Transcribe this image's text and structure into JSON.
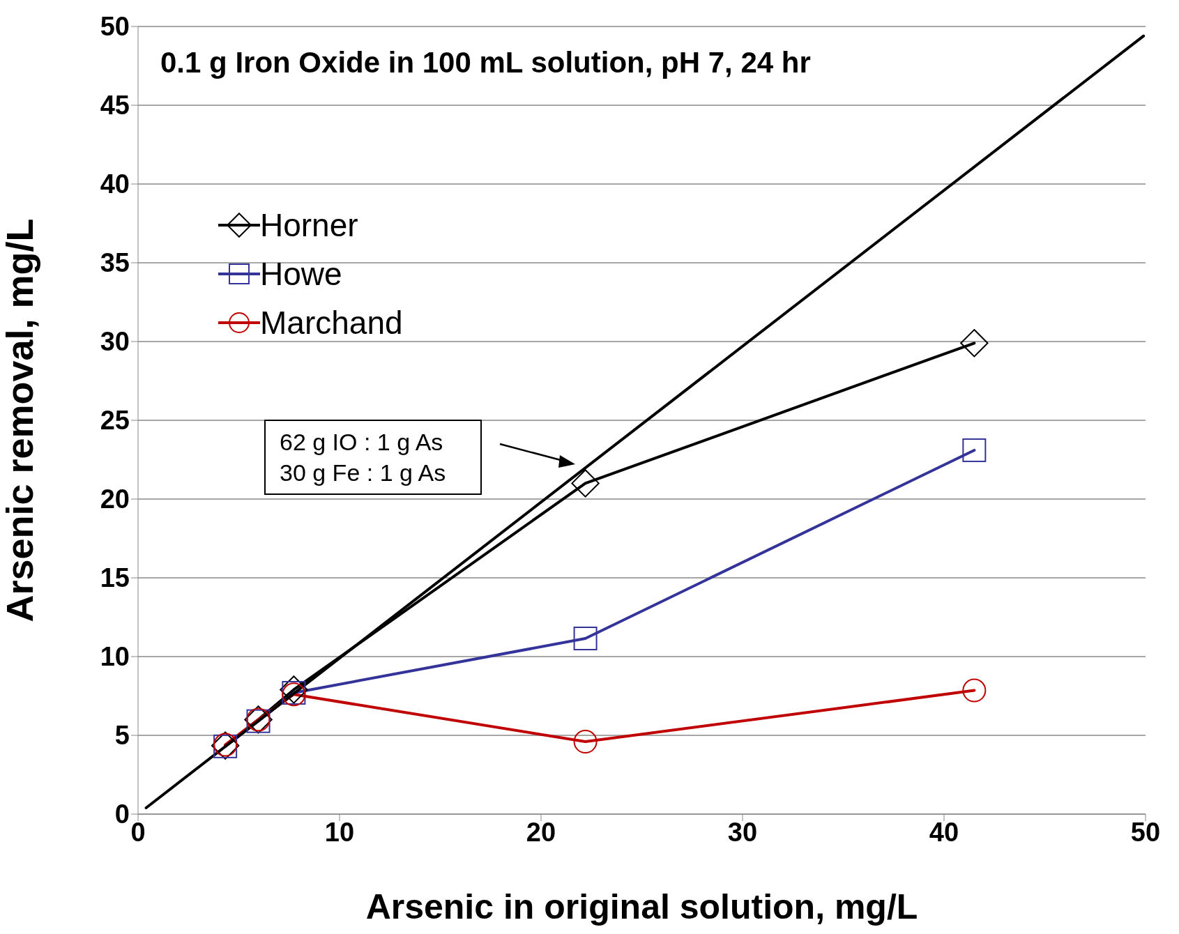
{
  "chart_data": {
    "type": "line",
    "title": "0.1 g Iron Oxide in 100 mL solution, pH 7, 24 hr",
    "xlabel": "Arsenic  in original solution, mg/L",
    "ylabel": "Arsenic  removal, mg/L",
    "xlim": [
      0,
      50
    ],
    "xticks": [
      0,
      10,
      20,
      30,
      40,
      50
    ],
    "ylim": [
      0,
      50
    ],
    "yticks": [
      0,
      5,
      10,
      15,
      20,
      25,
      30,
      35,
      40,
      45,
      50
    ],
    "grid": "y",
    "legend": "top left",
    "line_style": "solid",
    "x": [
      4.33,
      5.97,
      7.73,
      22.2,
      41.5
    ],
    "series": [
      {
        "name": "Horner",
        "color": "#000000",
        "marker": "diamond",
        "values": [
          4.35,
          6.0,
          7.9,
          21.0,
          29.9
        ]
      },
      {
        "name": "Howe",
        "color": "#333399",
        "marker": "square",
        "values": [
          4.3,
          5.9,
          7.7,
          11.15,
          23.1
        ]
      },
      {
        "name": "Marchand",
        "color": "#c00000",
        "marker": "circle",
        "values": [
          4.4,
          6.0,
          7.6,
          4.6,
          7.85
        ]
      },
      {
        "color": "#000000",
        "marker": "none",
        "x": [
          0.4,
          49.9
        ],
        "values": [
          0.4,
          49.4
        ]
      }
    ],
    "annotations": [
      "62 g IO : 1 g As\n30 g Fe : 1 g As"
    ]
  }
}
